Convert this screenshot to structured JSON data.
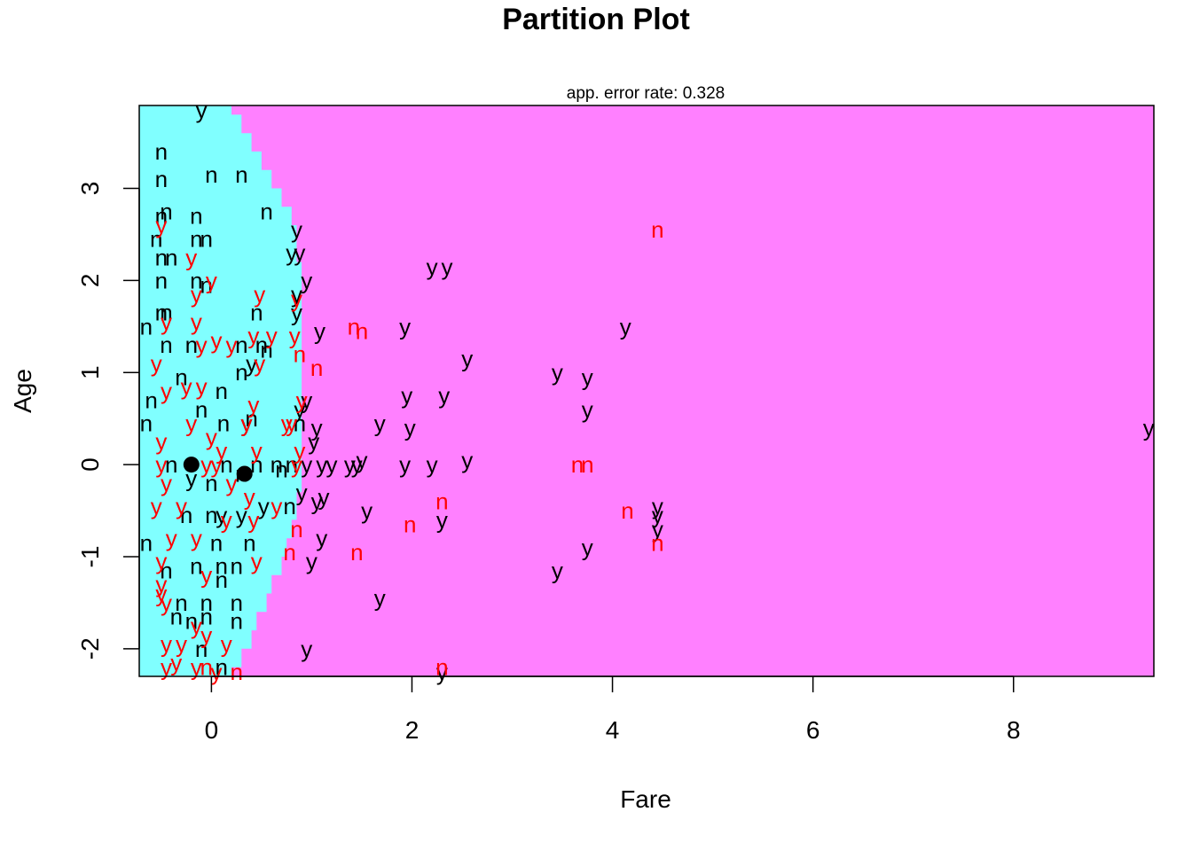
{
  "chart_data": {
    "type": "scatter",
    "title": "Partition Plot",
    "subtitle": "app. error rate: 0.328",
    "xlabel": "Fare",
    "ylabel": "Age",
    "xlim": [
      -0.72,
      9.4
    ],
    "ylim": [
      -2.3,
      3.9
    ],
    "xticks": [
      0,
      2,
      4,
      6,
      8
    ],
    "yticks": [
      -2,
      -1,
      0,
      1,
      2,
      3
    ],
    "grid": false,
    "legend": "none",
    "colors": {
      "region_n": "#80FFFF",
      "region_y": "#FF80FF",
      "correct": "#000000",
      "misclassified": "#FF0000",
      "center": "#000000"
    },
    "boundary": {
      "y_points": [
        3.9,
        3.8,
        3.6,
        3.4,
        3.2,
        3.0,
        2.8,
        2.6,
        2.4,
        2.2,
        2.0,
        1.8,
        1.5,
        1.2,
        1.0,
        0.5,
        0.0,
        -0.3,
        -0.6,
        -0.8,
        -1.0,
        -1.2,
        -1.4,
        -1.6,
        -1.8,
        -2.0,
        -2.2,
        -2.3
      ],
      "x_points": [
        0.2,
        0.3,
        0.4,
        0.5,
        0.6,
        0.7,
        0.8,
        0.85,
        0.85,
        0.9,
        0.9,
        0.9,
        0.9,
        0.9,
        0.9,
        0.9,
        0.9,
        0.85,
        0.8,
        0.75,
        0.7,
        0.6,
        0.55,
        0.45,
        0.4,
        0.3,
        0.2,
        0.15
      ]
    },
    "centers": [
      [
        -0.2,
        0.0
      ],
      [
        0.33,
        -0.1
      ]
    ],
    "points_y": [
      [
        0.85,
        2.55
      ],
      [
        0.8,
        2.3
      ],
      [
        0.88,
        2.3
      ],
      [
        2.2,
        2.15
      ],
      [
        2.35,
        2.15
      ],
      [
        0.95,
        2.0
      ],
      [
        0.85,
        1.85
      ],
      [
        0.85,
        1.65
      ],
      [
        1.08,
        1.45
      ],
      [
        1.93,
        1.5
      ],
      [
        4.13,
        1.5
      ],
      [
        2.55,
        1.15
      ],
      [
        3.45,
        1.0
      ],
      [
        3.75,
        0.95
      ],
      [
        0.95,
        0.7
      ],
      [
        1.95,
        0.75
      ],
      [
        2.32,
        0.75
      ],
      [
        3.75,
        0.6
      ],
      [
        0.88,
        0.6
      ],
      [
        1.05,
        0.4
      ],
      [
        1.68,
        0.45
      ],
      [
        1.98,
        0.4
      ],
      [
        9.35,
        0.4
      ],
      [
        1.02,
        0.25
      ],
      [
        0.95,
        0.0
      ],
      [
        1.1,
        0.0
      ],
      [
        1.2,
        0.0
      ],
      [
        1.38,
        0.0
      ],
      [
        1.5,
        0.05
      ],
      [
        1.45,
        0.0
      ],
      [
        1.93,
        0.0
      ],
      [
        2.2,
        0.0
      ],
      [
        2.55,
        0.05
      ],
      [
        0.9,
        -0.3
      ],
      [
        1.05,
        -0.4
      ],
      [
        1.12,
        -0.35
      ],
      [
        1.55,
        -0.5
      ],
      [
        2.3,
        -0.6
      ],
      [
        4.45,
        -0.45
      ],
      [
        4.45,
        -0.55
      ],
      [
        4.45,
        -0.7
      ],
      [
        1.1,
        -0.8
      ],
      [
        3.75,
        -0.9
      ],
      [
        1.0,
        -1.05
      ],
      [
        3.45,
        -1.15
      ],
      [
        1.68,
        -1.45
      ],
      [
        0.95,
        -2.0
      ],
      [
        2.3,
        -2.25
      ],
      [
        -0.1,
        3.85
      ],
      [
        0.4,
        1.1
      ],
      [
        0.35,
        0.45
      ],
      [
        -0.2,
        -0.15
      ],
      [
        0.1,
        -0.55
      ],
      [
        0.3,
        -0.55
      ],
      [
        0.52,
        -0.45
      ]
    ],
    "points_n": [
      [
        -0.5,
        3.4
      ],
      [
        -0.5,
        3.1
      ],
      [
        0.0,
        3.15
      ],
      [
        0.3,
        3.15
      ],
      [
        -0.45,
        2.75
      ],
      [
        -0.5,
        2.7
      ],
      [
        -0.15,
        2.7
      ],
      [
        0.55,
        2.75
      ],
      [
        -0.55,
        2.45
      ],
      [
        -0.15,
        2.45
      ],
      [
        -0.05,
        2.45
      ],
      [
        -0.5,
        2.25
      ],
      [
        -0.4,
        2.25
      ],
      [
        -0.5,
        2.0
      ],
      [
        -0.15,
        2.0
      ],
      [
        -0.05,
        1.95
      ],
      [
        -0.5,
        1.65
      ],
      [
        -0.45,
        1.65
      ],
      [
        0.45,
        1.65
      ],
      [
        0.5,
        1.3
      ],
      [
        -0.65,
        1.5
      ],
      [
        -0.45,
        1.3
      ],
      [
        -0.2,
        1.3
      ],
      [
        0.3,
        1.3
      ],
      [
        0.55,
        1.25
      ],
      [
        0.3,
        1.0
      ],
      [
        -0.3,
        0.95
      ],
      [
        0.1,
        0.8
      ],
      [
        -0.6,
        0.7
      ],
      [
        -0.1,
        0.6
      ],
      [
        0.12,
        0.45
      ],
      [
        -0.65,
        0.45
      ],
      [
        0.4,
        0.5
      ],
      [
        0.88,
        0.45
      ],
      [
        -0.4,
        0.0
      ],
      [
        0.15,
        0.0
      ],
      [
        0.45,
        0.0
      ],
      [
        0.65,
        0.0
      ],
      [
        0.8,
        0.0
      ],
      [
        0.7,
        -0.05
      ],
      [
        0.3,
        -0.1
      ],
      [
        0.0,
        -0.2
      ],
      [
        0.78,
        -0.45
      ],
      [
        -0.25,
        -0.55
      ],
      [
        0.0,
        -0.55
      ],
      [
        -0.65,
        -0.85
      ],
      [
        0.05,
        -0.85
      ],
      [
        0.38,
        -0.85
      ],
      [
        -0.15,
        -1.1
      ],
      [
        0.1,
        -1.1
      ],
      [
        0.25,
        -1.1
      ],
      [
        -0.45,
        -1.15
      ],
      [
        0.1,
        -1.25
      ],
      [
        -0.3,
        -1.5
      ],
      [
        -0.05,
        -1.5
      ],
      [
        0.25,
        -1.5
      ],
      [
        -0.35,
        -1.65
      ],
      [
        -0.05,
        -1.65
      ],
      [
        -0.2,
        -1.7
      ],
      [
        0.25,
        -1.7
      ],
      [
        -0.1,
        -2.0
      ],
      [
        0.1,
        -2.2
      ]
    ],
    "points_n_red": [
      [
        4.45,
        2.55
      ],
      [
        1.42,
        1.5
      ],
      [
        1.5,
        1.45
      ],
      [
        0.88,
        1.2
      ],
      [
        1.05,
        1.05
      ],
      [
        3.65,
        0.0
      ],
      [
        3.75,
        0.0
      ],
      [
        2.3,
        -0.4
      ],
      [
        4.15,
        -0.5
      ],
      [
        1.98,
        -0.65
      ],
      [
        0.85,
        -0.7
      ],
      [
        4.45,
        -0.85
      ],
      [
        0.78,
        -0.95
      ],
      [
        1.45,
        -0.95
      ],
      [
        2.3,
        -2.2
      ],
      [
        0.25,
        -2.25
      ],
      [
        -0.05,
        -2.2
      ]
    ],
    "points_y_red": [
      [
        -0.5,
        2.6
      ],
      [
        -0.2,
        2.25
      ],
      [
        0.0,
        2.0
      ],
      [
        -0.15,
        1.85
      ],
      [
        0.48,
        1.85
      ],
      [
        0.85,
        1.8
      ],
      [
        -0.15,
        1.55
      ],
      [
        -0.45,
        1.55
      ],
      [
        0.42,
        1.4
      ],
      [
        0.6,
        1.4
      ],
      [
        0.83,
        1.4
      ],
      [
        0.2,
        1.3
      ],
      [
        -0.1,
        1.3
      ],
      [
        0.05,
        1.35
      ],
      [
        0.48,
        1.1
      ],
      [
        -0.55,
        1.1
      ],
      [
        -0.25,
        0.85
      ],
      [
        -0.1,
        0.85
      ],
      [
        0.42,
        0.65
      ],
      [
        0.9,
        0.7
      ],
      [
        -0.45,
        0.8
      ],
      [
        0.8,
        0.45
      ],
      [
        0.35,
        0.45
      ],
      [
        0.75,
        0.45
      ],
      [
        -0.2,
        0.45
      ],
      [
        0.0,
        0.3
      ],
      [
        -0.5,
        0.25
      ],
      [
        0.1,
        0.15
      ],
      [
        0.45,
        0.15
      ],
      [
        0.88,
        0.15
      ],
      [
        -0.5,
        0.0
      ],
      [
        -0.05,
        0.0
      ],
      [
        0.05,
        0.0
      ],
      [
        0.85,
        0.0
      ],
      [
        -0.45,
        -0.2
      ],
      [
        0.2,
        -0.2
      ],
      [
        0.38,
        -0.35
      ],
      [
        0.65,
        -0.45
      ],
      [
        -0.3,
        -0.45
      ],
      [
        -0.55,
        -0.45
      ],
      [
        0.15,
        -0.6
      ],
      [
        0.42,
        -0.6
      ],
      [
        -0.4,
        -0.8
      ],
      [
        -0.15,
        -0.8
      ],
      [
        -0.5,
        -1.05
      ],
      [
        0.45,
        -1.05
      ],
      [
        -0.05,
        -1.2
      ],
      [
        -0.5,
        -1.3
      ],
      [
        -0.5,
        -1.4
      ],
      [
        -0.45,
        -1.5
      ],
      [
        -0.15,
        -1.75
      ],
      [
        -0.45,
        -1.95
      ],
      [
        -0.3,
        -1.95
      ],
      [
        -0.05,
        -1.85
      ],
      [
        0.15,
        -1.95
      ],
      [
        -0.35,
        -2.15
      ],
      [
        -0.15,
        -2.2
      ],
      [
        -0.45,
        -2.2
      ],
      [
        0.05,
        -2.25
      ]
    ]
  }
}
